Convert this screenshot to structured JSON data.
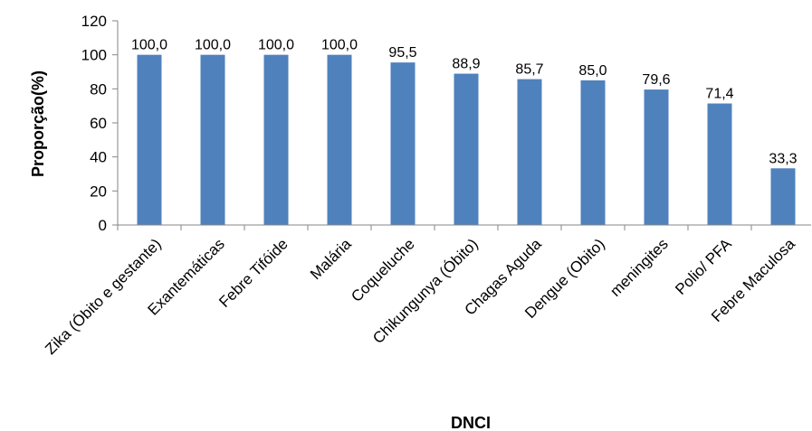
{
  "chart_data": {
    "type": "bar",
    "title": "",
    "xlabel": "DNCI",
    "ylabel": "Proporção(%)",
    "ylim": [
      0,
      120
    ],
    "yticks": [
      0,
      20,
      40,
      60,
      80,
      100,
      120
    ],
    "grid": false,
    "categories": [
      "Zika (Óbito e gestante)",
      "Exantemáticas",
      "Febre Tifóide",
      "Malária",
      "Coqueluche",
      "Chikungunya (Óbito)",
      "Chagas Aguda",
      "Dengue (Obito)",
      "meningites",
      "Polio/ PFA",
      "Febre Maculosa"
    ],
    "values": [
      100.0,
      100.0,
      100.0,
      100.0,
      95.5,
      88.9,
      85.7,
      85.0,
      79.6,
      71.4,
      33.3
    ],
    "data_labels": [
      "100,0",
      "100,0",
      "100,0",
      "100,0",
      "95,5",
      "88,9",
      "85,7",
      "85,0",
      "79,6",
      "71,4",
      "33,3"
    ],
    "colors": {
      "bar": "#4F81BD",
      "axis": "#868686"
    }
  }
}
